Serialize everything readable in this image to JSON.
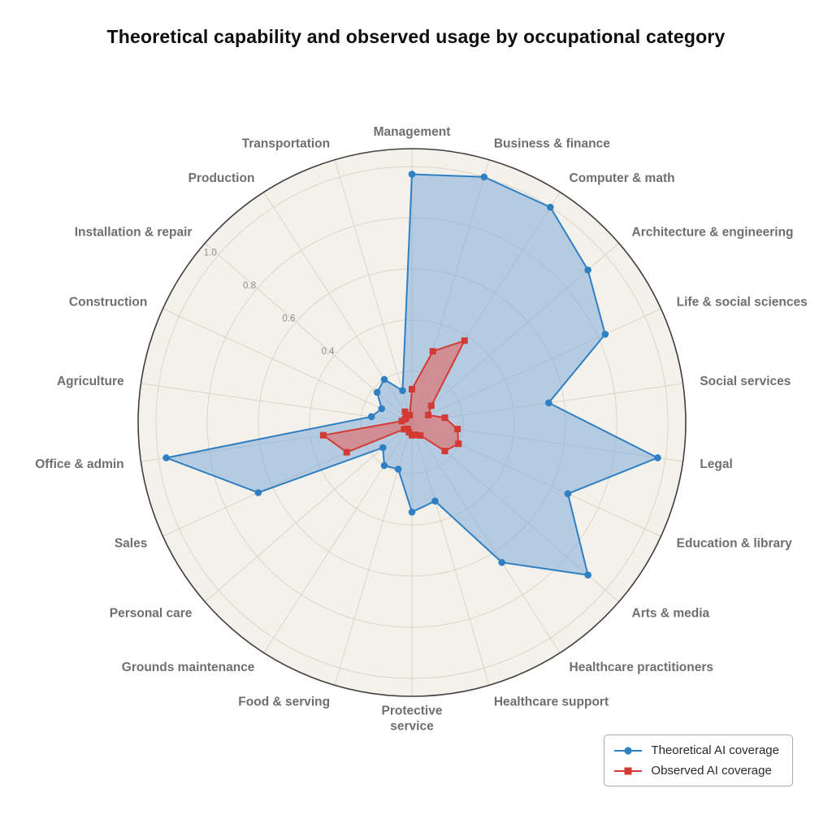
{
  "title": "Theoretical capability and observed usage by occupational category",
  "colors": {
    "background": "#ffffff",
    "plot_bg": "#f4f1ea",
    "grid": "#d9d5cc",
    "outline": "#3f3f3f",
    "category_label": "#6f6f6f",
    "tick_label": "#8b8b8b",
    "blue": "#2f7fc3",
    "blue_fill": "rgba(127,172,217,0.55)",
    "red": "#d33a34",
    "red_fill": "rgba(226,106,100,0.62)"
  },
  "legend": {
    "items": [
      {
        "label": "Theoretical AI coverage",
        "marker": "circle",
        "color": "#2f7fc3"
      },
      {
        "label": "Observed AI coverage",
        "marker": "square",
        "color": "#d33a34"
      }
    ]
  },
  "chart_data": {
    "type": "radar",
    "start": "top",
    "direction": "clockwise",
    "rmax": 1.07,
    "grid": true,
    "legend_position": "bottom-right",
    "radial_ticks": [
      0.2,
      0.4,
      0.6,
      0.8,
      1.0
    ],
    "radial_tick_labels": [
      "0.4",
      "0.6",
      "0.8",
      "1.0"
    ],
    "categories": [
      "Management",
      "Business & finance",
      "Computer & math",
      "Architecture & engineering",
      "Life & social sciences",
      "Social services",
      "Legal",
      "Education & library",
      "Arts & media",
      "Healthcare practitioners",
      "Healthcare support",
      "Protective\nservice",
      "Food & serving",
      "Grounds maintenance",
      "Personal care",
      "Sales",
      "Office & admin",
      "Agriculture",
      "Construction",
      "Installation & repair",
      "Production",
      "Transportation"
    ],
    "series": [
      {
        "name": "Theoretical AI coverage",
        "marker": "circle",
        "values": [
          0.97,
          1.0,
          1.0,
          0.91,
          0.83,
          0.54,
          0.97,
          0.67,
          0.91,
          0.65,
          0.32,
          0.35,
          0.19,
          0.2,
          0.15,
          0.66,
          0.97,
          0.16,
          0.13,
          0.18,
          0.2,
          0.13
        ]
      },
      {
        "name": "Observed AI coverage",
        "marker": "square",
        "values": [
          0.13,
          0.29,
          0.38,
          0.1,
          0.07,
          0.13,
          0.18,
          0.2,
          0.17,
          0.06,
          0.05,
          0.05,
          0.04,
          0.03,
          0.04,
          0.28,
          0.35,
          0.04,
          0.03,
          0.03,
          0.05,
          0.03
        ]
      }
    ]
  }
}
